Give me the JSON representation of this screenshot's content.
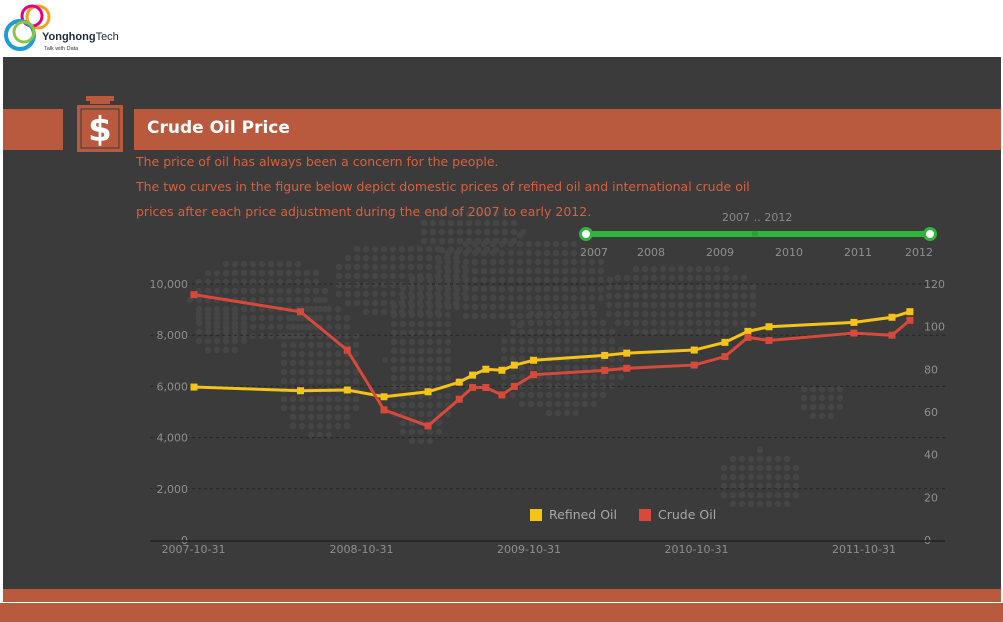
{
  "brand": {
    "name": "Yonghong",
    "name_suffix": "Tech",
    "tagline": "Talk with Data"
  },
  "header": {
    "title": "Crude Oil Price",
    "icon": "dollar-icon"
  },
  "description": [
    "The price of oil has always been a concern for the people.",
    "The two curves in the figure below depict domestic prices of refined oil and international crude oil",
    "prices after each price adjustment during the end of 2007 to early 2012."
  ],
  "slider": {
    "title": "2007 ‥ 2012",
    "ticks": [
      "2007",
      "2008",
      "2009",
      "2010",
      "2011",
      "2012"
    ],
    "range": [
      "2007",
      "2012"
    ]
  },
  "colors": {
    "refined": "#f4c417",
    "crude": "#d9493b",
    "accent": "#b95a3e",
    "slider": "#2fb53b"
  },
  "chart_data": {
    "type": "line",
    "title": "Crude Oil Price",
    "x_ticks": [
      "2007-10-31",
      "2008-10-31",
      "2009-10-31",
      "2010-10-31",
      "2011-10-31"
    ],
    "xlim": [
      "2007-09-01",
      "2012-03-01"
    ],
    "left_axis": {
      "ticks": [
        "10,000",
        "8,000",
        "6,000",
        "4,000",
        "2,000",
        "0"
      ],
      "range": [
        0,
        10000
      ]
    },
    "right_axis": {
      "ticks": [
        "120",
        "100",
        "80",
        "60",
        "40",
        "20",
        "0"
      ],
      "range": [
        0,
        120
      ]
    },
    "grid": true,
    "legend": "bottom-center",
    "series": [
      {
        "name": "Refined Oil",
        "axis": "left",
        "points": [
          [
            "2007-11-01",
            5975
          ],
          [
            "2008-06-20",
            5830
          ],
          [
            "2008-09-30",
            5860
          ],
          [
            "2008-12-19",
            5595
          ],
          [
            "2009-03-25",
            5790
          ],
          [
            "2009-06-01",
            6165
          ],
          [
            "2009-06-30",
            6440
          ],
          [
            "2009-07-29",
            6670
          ],
          [
            "2009-09-02",
            6630
          ],
          [
            "2009-09-29",
            6830
          ],
          [
            "2009-11-10",
            7020
          ],
          [
            "2010-04-14",
            7210
          ],
          [
            "2010-06-01",
            7300
          ],
          [
            "2010-10-26",
            7420
          ],
          [
            "2011-01-01",
            7720
          ],
          [
            "2011-02-20",
            8150
          ],
          [
            "2011-04-07",
            8330
          ],
          [
            "2011-10-09",
            8500
          ],
          [
            "2011-12-31",
            8700
          ],
          [
            "2012-02-08",
            8920
          ]
        ]
      },
      {
        "name": "Crude Oil",
        "axis": "right",
        "points": [
          [
            "2007-11-01",
            115
          ],
          [
            "2008-06-20",
            107
          ],
          [
            "2008-09-30",
            89
          ],
          [
            "2008-12-19",
            61
          ],
          [
            "2009-03-25",
            53.5
          ],
          [
            "2009-06-01",
            66
          ],
          [
            "2009-06-30",
            71.5
          ],
          [
            "2009-07-29",
            71.5
          ],
          [
            "2009-09-02",
            68
          ],
          [
            "2009-09-29",
            72
          ],
          [
            "2009-11-10",
            77.5
          ],
          [
            "2010-04-14",
            79.5
          ],
          [
            "2010-06-01",
            80.5
          ],
          [
            "2010-10-26",
            82
          ],
          [
            "2011-01-01",
            86
          ],
          [
            "2011-02-20",
            95
          ],
          [
            "2011-04-07",
            93.5
          ],
          [
            "2011-10-09",
            97
          ],
          [
            "2011-12-31",
            96
          ],
          [
            "2012-02-08",
            103
          ]
        ]
      }
    ]
  }
}
